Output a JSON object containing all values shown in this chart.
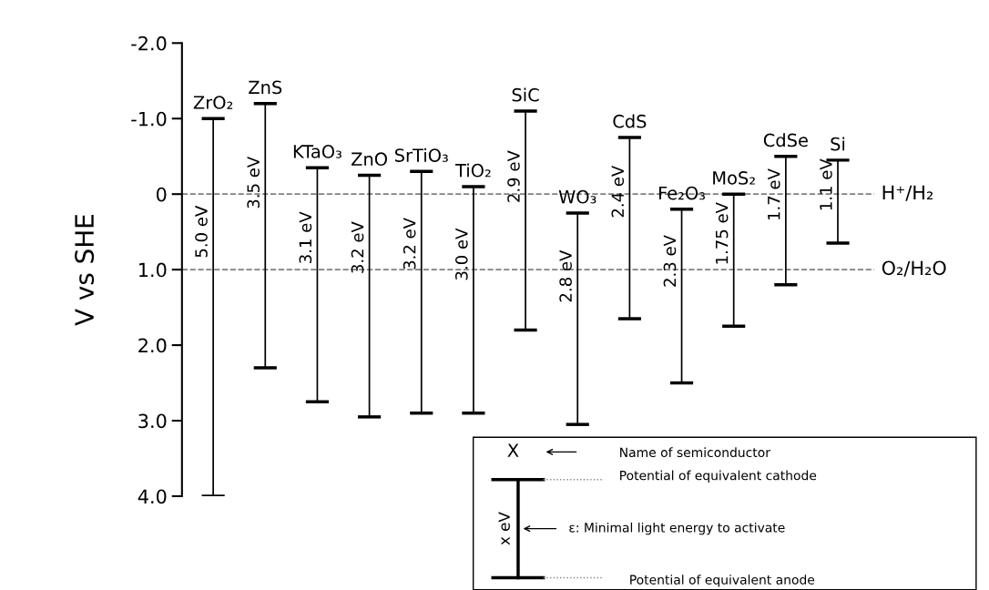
{
  "chart_data": {
    "type": "bar",
    "ylabel": "V vs SHE",
    "categories": [
      "ZrO₂",
      "ZnS",
      "KTaO₃",
      "ZnO",
      "SrTiO₃",
      "TiO₂",
      "SiC",
      "WO₃",
      "CdS",
      "Fe₂O₃",
      "MoS₂",
      "CdSe",
      "Si"
    ],
    "base": [
      -1.0,
      -1.2,
      -0.35,
      -0.25,
      -0.3,
      -0.1,
      -1.1,
      0.25,
      -0.75,
      0.2,
      0.0,
      -0.5,
      -0.45
    ],
    "values": [
      5.0,
      3.5,
      3.1,
      3.2,
      3.2,
      3.0,
      2.9,
      2.8,
      2.4,
      2.3,
      1.75,
      1.7,
      1.1
    ],
    "color": "#000000",
    "value_labels": [
      "5.0 eV",
      "3.5 eV",
      "3.1 eV",
      "3.2 eV",
      "3.2 eV",
      "3.0 eV",
      "2.9 eV",
      "2.8 eV",
      "2.4 eV",
      "2.3 eV",
      "1.75 eV",
      "1.7 eV",
      "1.1 eV"
    ],
    "ylim": [
      4.0,
      -2.0
    ],
    "yticks": [
      {
        "value": -2.0,
        "label": "-2.0"
      },
      {
        "value": -1.0,
        "label": "-1.0"
      },
      {
        "value": 0,
        "label": "0"
      },
      {
        "value": 1.0,
        "label": "1.0"
      },
      {
        "value": 2.0,
        "label": "2.0"
      },
      {
        "value": 3.0,
        "label": "3.0"
      },
      {
        "value": 4.0,
        "label": "4.0"
      }
    ],
    "tick_labels": "y",
    "grid": false,
    "legend": false,
    "ref_lines": [
      {
        "axis": "y",
        "value": 0,
        "label": "H⁺/H₂",
        "color": "#808080",
        "line_style": "dashed"
      },
      {
        "axis": "y",
        "value": 1.0,
        "label": "O₂/H₂O",
        "color": "#808080",
        "line_style": "dashed"
      }
    ],
    "annotations": [
      "X",
      "Name of semiconductor",
      "Potential of equivalent cathode",
      "x eV",
      "ε: Minimal light energy to activate",
      "Potential of equivalent anode"
    ]
  }
}
